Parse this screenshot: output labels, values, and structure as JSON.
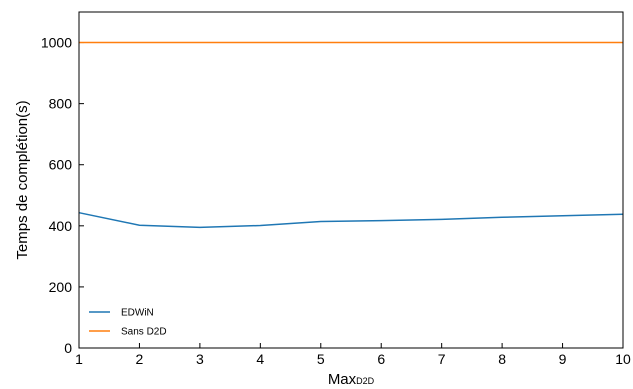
{
  "chart_data": {
    "type": "line",
    "x": [
      1,
      2,
      3,
      4,
      5,
      6,
      7,
      8,
      9,
      10
    ],
    "series": [
      {
        "name": "EDWiN",
        "color": "#1f77b4",
        "values": [
          443,
          402,
          395,
          401,
          414,
          417,
          421,
          428,
          433,
          438
        ]
      },
      {
        "name": "Sans D2D",
        "color": "#ff7f0e",
        "values": [
          1000,
          1000,
          1000,
          1000,
          1000,
          1000,
          1000,
          1000,
          1000,
          1000
        ]
      }
    ],
    "xlabel": "Max",
    "xlabel_subscript": "D2D",
    "ylabel": "Temps de complétion(s)",
    "xlim": [
      1,
      10
    ],
    "ylim": [
      0,
      1100
    ],
    "xticks": [
      "1",
      "2",
      "3",
      "4",
      "5",
      "6",
      "7",
      "8",
      "9",
      "10"
    ],
    "yticks": [
      "0",
      "200",
      "400",
      "600",
      "800",
      "1000"
    ],
    "grid": false,
    "legend_position": "lower-left"
  }
}
